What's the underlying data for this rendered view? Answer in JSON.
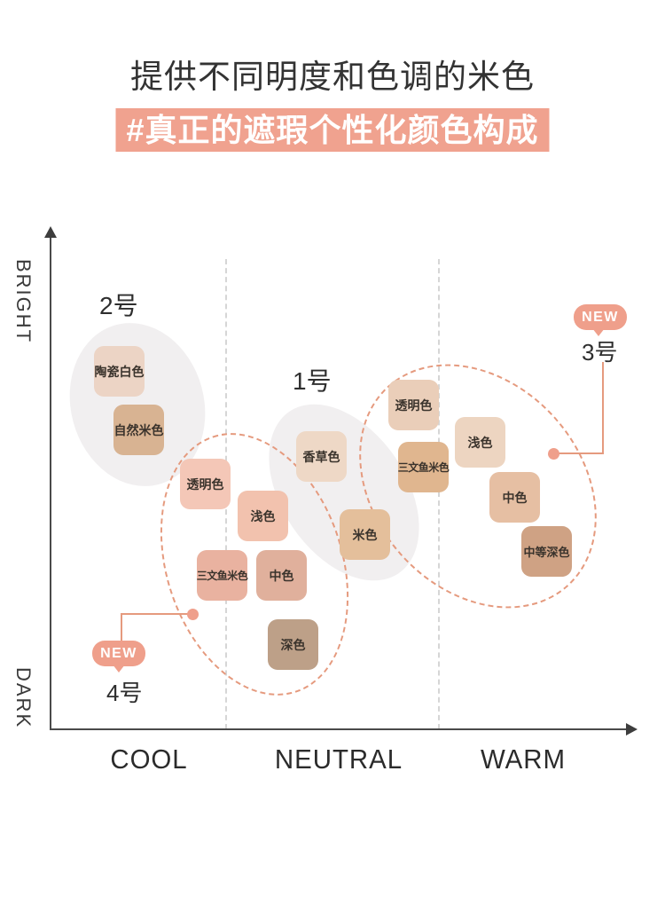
{
  "page": {
    "title": "提供不同明度和色调的米色",
    "subtitle": "#真正的遮瑕个性化颜色构成"
  },
  "labels": {
    "new_badge": "NEW"
  },
  "colors": {
    "banner_bg": "#f0a28f",
    "badge_bg": "#ef9f8b",
    "dashed_outline": "#e59a7e",
    "axis": "#4a4a4a",
    "gridline": "#cfcfcf",
    "blob": "#f1eff0"
  },
  "chart_data": {
    "type": "scatter",
    "title": "提供不同明度和色调的米色",
    "subtitle": "#真正的遮瑕个性化颜色构成",
    "xlabel": "color tone",
    "ylabel": "brightness",
    "x_labels": [
      "COOL",
      "NEUTRAL",
      "WARM"
    ],
    "y_axis": {
      "top": "BRIGHT",
      "bottom": "DARK"
    },
    "grid": "two dashed vertical dividers between tone zones",
    "groups": [
      {
        "label": "2号",
        "is_new": false,
        "tone": "COOL",
        "brightness": "bright",
        "swatches": [
          {
            "label": "陶瓷白色",
            "color": "#ecd4c5"
          },
          {
            "label": "自然米色",
            "color": "#d8b392"
          }
        ]
      },
      {
        "label": "1号",
        "is_new": false,
        "tone": "NEUTRAL",
        "brightness": "bright-to-medium",
        "swatches": [
          {
            "label": "香草色",
            "color": "#eed8c6"
          },
          {
            "label": "米色",
            "color": "#e4bf9b"
          }
        ]
      },
      {
        "label": "4号",
        "is_new": true,
        "tone": "COOL-NEUTRAL",
        "brightness": "medium-to-dark",
        "swatches": [
          {
            "label": "透明色",
            "color": "#f4c7b7"
          },
          {
            "label": "浅色",
            "color": "#f2c2ae"
          },
          {
            "label": "三文鱼米色",
            "color": "#e9b2a0"
          },
          {
            "label": "中色",
            "color": "#e0b09c"
          },
          {
            "label": "深色",
            "color": "#bda088"
          }
        ]
      },
      {
        "label": "3号",
        "is_new": true,
        "tone": "NEUTRAL-WARM",
        "brightness": "bright-to-medium-dark",
        "swatches": [
          {
            "label": "透明色",
            "color": "#eaceb9"
          },
          {
            "label": "浅色",
            "color": "#edd5c1"
          },
          {
            "label": "三文鱼米色",
            "color": "#e0b68f"
          },
          {
            "label": "中色",
            "color": "#e6bfa3"
          },
          {
            "label": "中等深色",
            "color": "#cfa284"
          }
        ]
      }
    ]
  }
}
